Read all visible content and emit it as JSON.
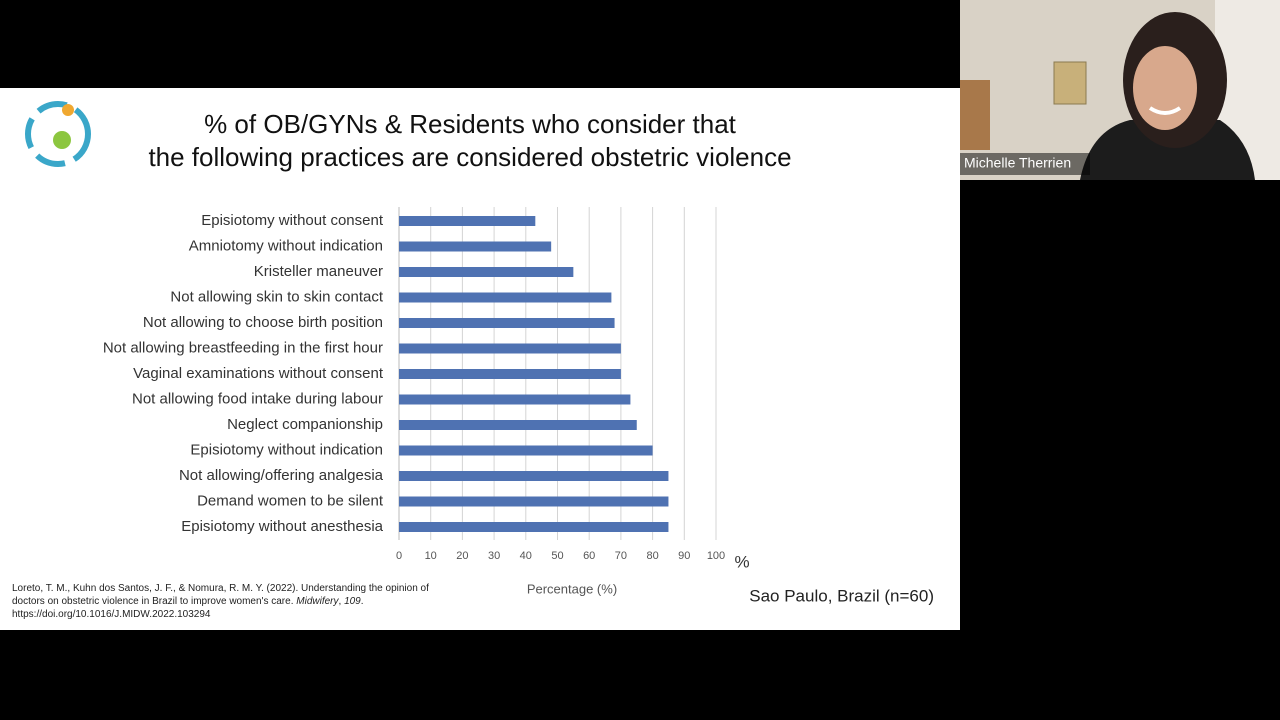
{
  "slide": {
    "title_lines": [
      "% of OB/GYNs & Residents who consider that",
      "the following practices are considered obstetric violence"
    ],
    "citation": [
      "Loreto, T. M., Kuhn dos Santos, J. F., & Nomura, R. M. Y. (2022). Understanding the opinion of doctors on obstetric violence in Brazil to improve women's care. ",
      "Midwifery",
      ", ",
      "109",
      ". https://doi.org/10.1016/J.MIDW.2022.103294"
    ],
    "note": "Sao Paulo, Brazil (n=60)"
  },
  "chart_data": {
    "type": "bar",
    "orientation": "horizontal",
    "categories": [
      "Episiotomy without consent",
      "Amniotomy without indication",
      "Kristeller maneuver",
      "Not allowing skin to skin contact",
      "Not allowing to choose birth position",
      "Not allowing breastfeeding in the first hour",
      "Vaginal examinations without consent",
      "Not allowing food intake during labour",
      "Neglect companionship",
      "Episiotomy without indication",
      "Not allowing/offering analgesia",
      "Demand women to be silent",
      "Episiotomy without anesthesia"
    ],
    "values": [
      43,
      48,
      55,
      67,
      68,
      70,
      70,
      73,
      75,
      80,
      85,
      85,
      85
    ],
    "color": "#4f72b2",
    "xlim": [
      0,
      100
    ],
    "xticks": [
      0,
      10,
      20,
      30,
      40,
      50,
      60,
      70,
      80,
      90,
      100
    ],
    "x_unit": "%",
    "xlabel": "Percentage (%)",
    "grid": true
  },
  "participant": {
    "name": "Michelle Therrien"
  }
}
